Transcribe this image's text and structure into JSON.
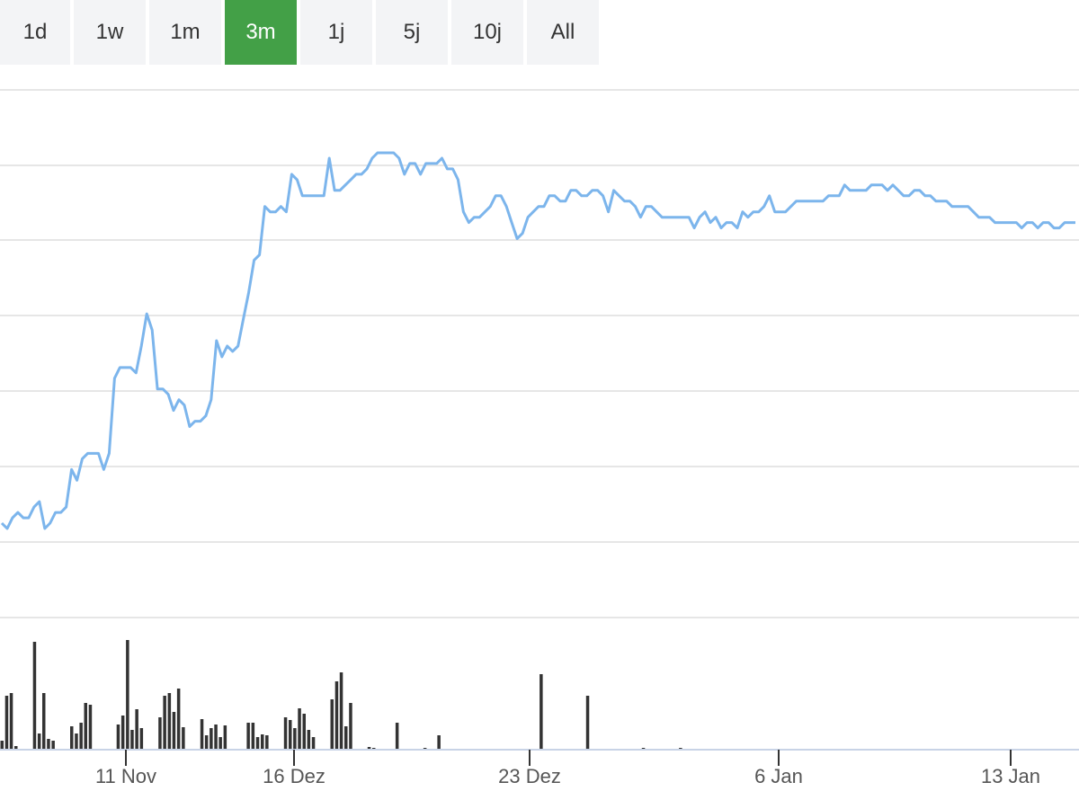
{
  "range_selector": {
    "tabs": [
      {
        "label": "1d",
        "active": false
      },
      {
        "label": "1w",
        "active": false
      },
      {
        "label": "1m",
        "active": false
      },
      {
        "label": "3m",
        "active": true
      },
      {
        "label": "1j",
        "active": false
      },
      {
        "label": "5j",
        "active": false
      },
      {
        "label": "10j",
        "active": false
      },
      {
        "label": "All",
        "active": false
      }
    ],
    "active_color": "#43a047"
  },
  "chart_data": {
    "type": "line",
    "title": "",
    "xlabel": "",
    "ylabel": "",
    "x_tick_labels": [
      "11 Nov",
      "16 Dez",
      "23 Dez",
      "6 Jan",
      "13 Jan"
    ],
    "grid": true,
    "y_ticks_labeled": false,
    "line_color": "#7cb5ec",
    "volume_color": "#333333",
    "series": [
      {
        "values": [
          0.3,
          0.29,
          0.31,
          0.32,
          0.31,
          0.31,
          0.33,
          0.34,
          0.29,
          0.3,
          0.32,
          0.32,
          0.33,
          0.4,
          0.38,
          0.42,
          0.43,
          0.43,
          0.43,
          0.4,
          0.43,
          0.57,
          0.59,
          0.59,
          0.59,
          0.58,
          0.63,
          0.69,
          0.66,
          0.55,
          0.55,
          0.54,
          0.51,
          0.53,
          0.52,
          0.48,
          0.49,
          0.49,
          0.5,
          0.53,
          0.64,
          0.61,
          0.63,
          0.62,
          0.63,
          0.68,
          0.73,
          0.79,
          0.8,
          0.89,
          0.88,
          0.88,
          0.89,
          0.88,
          0.95,
          0.94,
          0.91,
          0.91,
          0.91,
          0.91,
          0.91,
          0.98,
          0.92,
          0.92,
          0.93,
          0.94,
          0.95,
          0.95,
          0.96,
          0.98,
          0.99,
          0.99,
          0.99,
          0.99,
          0.98,
          0.95,
          0.97,
          0.97,
          0.95,
          0.97,
          0.97,
          0.97,
          0.98,
          0.96,
          0.96,
          0.94,
          0.88,
          0.86,
          0.87,
          0.87,
          0.88,
          0.89,
          0.91,
          0.91,
          0.89,
          0.86,
          0.83,
          0.84,
          0.87,
          0.88,
          0.89,
          0.89,
          0.91,
          0.91,
          0.9,
          0.9,
          0.92,
          0.92,
          0.91,
          0.91,
          0.92,
          0.92,
          0.91,
          0.88,
          0.92,
          0.91,
          0.9,
          0.9,
          0.89,
          0.87,
          0.89,
          0.89,
          0.88,
          0.87,
          0.87,
          0.87,
          0.87,
          0.87,
          0.87,
          0.85,
          0.87,
          0.88,
          0.86,
          0.87,
          0.85,
          0.86,
          0.86,
          0.85,
          0.88,
          0.87,
          0.88,
          0.88,
          0.89,
          0.91,
          0.88,
          0.88,
          0.88,
          0.89,
          0.9,
          0.9,
          0.9,
          0.9,
          0.9,
          0.9,
          0.91,
          0.91,
          0.91,
          0.93,
          0.92,
          0.92,
          0.92,
          0.92,
          0.93,
          0.93,
          0.93,
          0.92,
          0.93,
          0.92,
          0.91,
          0.91,
          0.92,
          0.92,
          0.91,
          0.91,
          0.9,
          0.9,
          0.9,
          0.89,
          0.89,
          0.89,
          0.89,
          0.88,
          0.87,
          0.87,
          0.87,
          0.86,
          0.86,
          0.86,
          0.86,
          0.86,
          0.85,
          0.86,
          0.86,
          0.85,
          0.86,
          0.86,
          0.85,
          0.85,
          0.86,
          0.86,
          0.86
        ]
      }
    ],
    "volume": {
      "values": [
        10,
        60,
        63,
        4,
        0,
        0,
        0,
        120,
        18,
        63,
        12,
        10,
        0,
        0,
        0,
        26,
        18,
        30,
        52,
        50,
        0,
        0,
        0,
        0,
        0,
        28,
        38,
        122,
        22,
        45,
        24,
        0,
        0,
        0,
        36,
        60,
        63,
        42,
        68,
        25,
        0,
        0,
        0,
        34,
        16,
        24,
        28,
        14,
        27,
        0,
        0,
        0,
        0,
        30,
        30,
        14,
        17,
        16,
        0,
        0,
        0,
        36,
        33,
        24,
        46,
        40,
        22,
        14,
        0,
        0,
        0,
        56,
        76,
        86,
        26,
        52,
        0,
        0,
        0,
        3,
        2,
        0,
        0,
        0,
        0,
        30,
        0,
        0,
        0,
        0,
        0,
        2,
        0,
        0,
        16,
        0,
        0,
        0,
        0,
        0,
        0,
        0,
        0,
        0,
        0,
        0,
        0,
        0,
        0,
        0,
        0,
        0,
        0,
        0,
        0,
        0,
        84,
        0,
        0,
        0,
        0,
        0,
        0,
        0,
        0,
        0,
        60,
        0,
        0,
        0,
        0,
        0,
        0,
        0,
        0,
        0,
        0,
        0,
        2,
        0,
        0,
        0,
        0,
        0,
        0,
        0,
        2,
        0,
        0,
        0,
        0,
        0,
        0,
        0,
        0,
        0,
        0,
        0,
        0,
        0,
        0,
        0,
        0,
        0,
        0,
        0,
        0,
        0,
        0,
        0,
        0,
        0,
        0,
        0,
        0,
        0,
        0,
        0,
        0,
        0,
        0,
        0,
        0,
        0,
        0,
        0,
        0,
        0,
        0,
        0,
        0,
        0,
        0,
        0,
        0,
        0,
        0,
        0,
        0,
        0,
        0,
        0,
        0,
        0,
        0,
        0,
        0,
        0,
        0,
        0,
        0,
        0,
        0,
        0,
        0,
        0,
        0,
        0,
        0,
        0,
        0,
        0,
        0,
        0,
        0,
        0,
        0,
        0,
        0,
        0,
        0,
        0
      ]
    }
  }
}
